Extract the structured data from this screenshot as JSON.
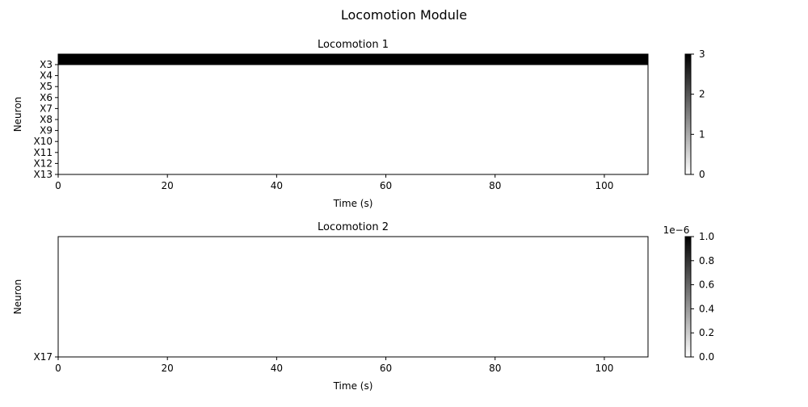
{
  "figure": {
    "suptitle": "Locomotion Module"
  },
  "chart_data": [
    {
      "type": "heatmap",
      "title": "Locomotion 1",
      "xlabel": "Time (s)",
      "ylabel": "Neuron",
      "xlim": [
        0,
        108
      ],
      "xticks": [
        0,
        20,
        40,
        60,
        80,
        100
      ],
      "rows": [
        "X3",
        "X4",
        "X5",
        "X6",
        "X7",
        "X8",
        "X9",
        "X10",
        "X11",
        "X12",
        "X13"
      ],
      "values": [
        3,
        0,
        0,
        0,
        0,
        0,
        0,
        0,
        0,
        0,
        0
      ],
      "colorscale": "Greys",
      "colorbar": {
        "range": [
          0,
          3
        ],
        "ticks": [
          "0",
          "1",
          "2",
          "3"
        ],
        "offset_text": ""
      }
    },
    {
      "type": "heatmap",
      "title": "Locomotion 2",
      "xlabel": "Time (s)",
      "ylabel": "Neuron",
      "xlim": [
        0,
        108
      ],
      "xticks": [
        0,
        20,
        40,
        60,
        80,
        100
      ],
      "rows": [
        "X17"
      ],
      "values": [
        0
      ],
      "colorscale": "Greys",
      "colorbar": {
        "range": [
          0,
          1
        ],
        "ticks": [
          "0.0",
          "0.2",
          "0.4",
          "0.6",
          "0.8",
          "1.0"
        ],
        "offset_text": "1e−6"
      }
    }
  ]
}
